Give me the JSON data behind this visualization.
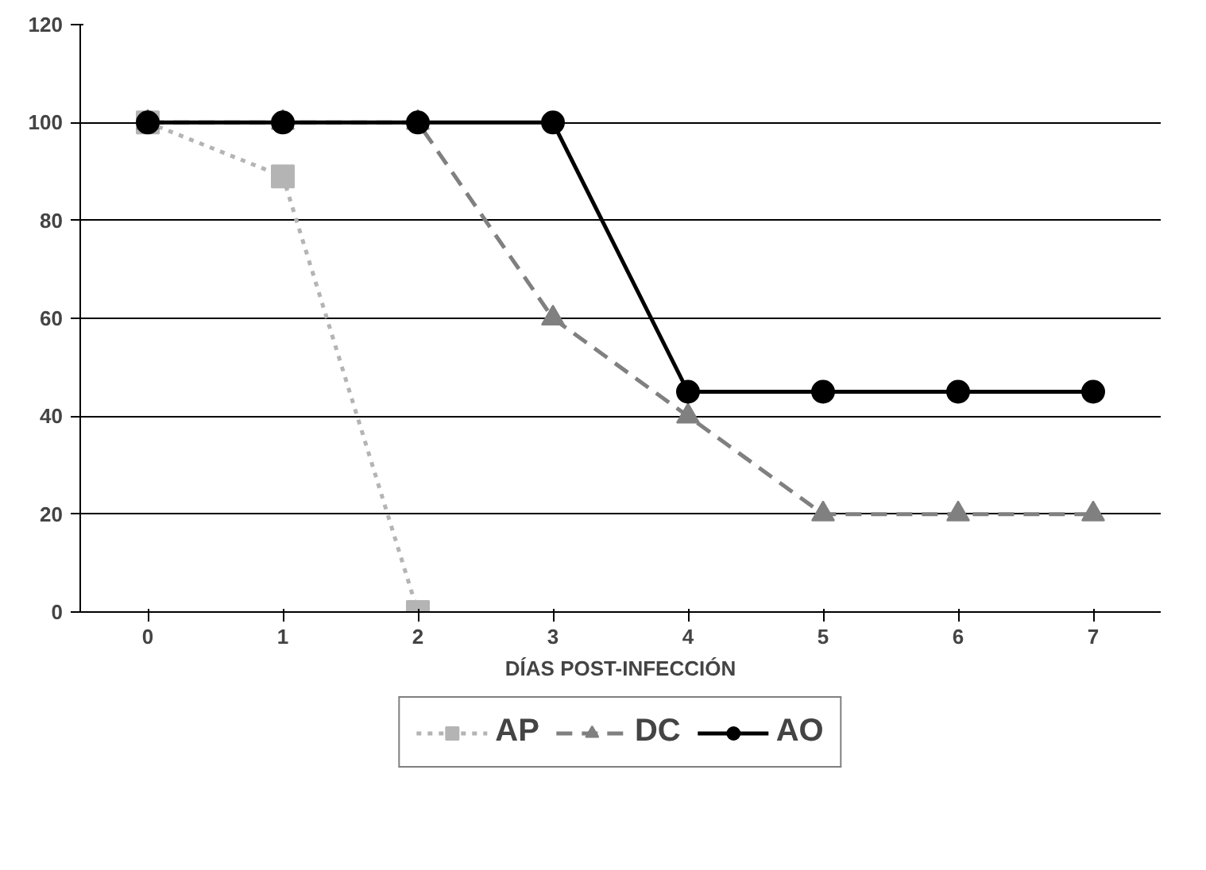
{
  "chart_data": {
    "type": "line",
    "xlabel": "DÍAS POST-INFECCIÓN",
    "categories": [
      "0",
      "1",
      "2",
      "3",
      "4",
      "5",
      "6",
      "7"
    ],
    "ylim": [
      0,
      120
    ],
    "yticks": [
      0,
      20,
      40,
      60,
      80,
      100,
      120
    ],
    "grid": "y",
    "legend": "bottom",
    "series": [
      {
        "name": "AP",
        "color": "#b4b4b4",
        "marker": "square",
        "line_style": "dotted",
        "values": [
          100,
          89,
          0,
          null,
          null,
          null,
          null,
          null
        ]
      },
      {
        "name": "DC",
        "color": "#808080",
        "marker": "triangle",
        "line_style": "dashed",
        "values": [
          100,
          100,
          100,
          60,
          40,
          20,
          20,
          20
        ]
      },
      {
        "name": "AO",
        "color": "#000000",
        "marker": "circle",
        "line_style": "solid",
        "values": [
          100,
          100,
          100,
          100,
          45,
          45,
          45,
          45
        ]
      }
    ]
  }
}
